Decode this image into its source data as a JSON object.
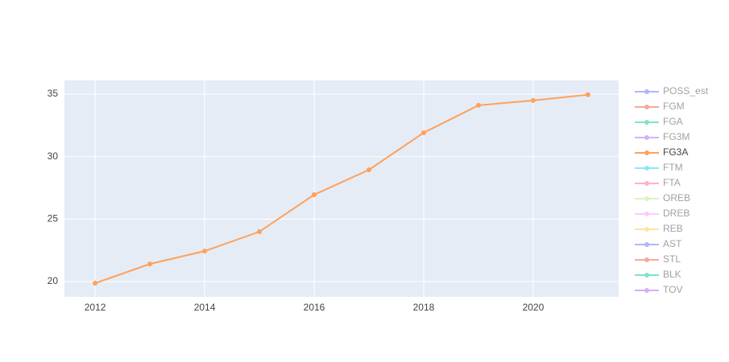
{
  "chart_data": {
    "type": "line",
    "x": [
      2012,
      2013,
      2014,
      2015,
      2016,
      2017,
      2018,
      2019,
      2020,
      2021
    ],
    "xlim": [
      2011.44,
      2021.56
    ],
    "xticks": [
      2012,
      2014,
      2016,
      2018,
      2020
    ],
    "ylim": [
      18.78,
      36.09
    ],
    "yticks": [
      20,
      25,
      30,
      35
    ],
    "grid": true,
    "legend": "right",
    "series": [
      {
        "name": "POSS_est",
        "color": "#636efa",
        "visible": false
      },
      {
        "name": "FGM",
        "color": "#EF553B",
        "visible": false
      },
      {
        "name": "FGA",
        "color": "#00cc96",
        "visible": false
      },
      {
        "name": "FG3M",
        "color": "#ab63fa",
        "visible": false
      },
      {
        "name": "FG3A",
        "color": "#FFA15A",
        "visible": true,
        "values": [
          19.87,
          21.41,
          22.44,
          23.99,
          26.95,
          28.94,
          31.91,
          34.1,
          34.49,
          34.95
        ]
      },
      {
        "name": "FTM",
        "color": "#19d3f3",
        "visible": false
      },
      {
        "name": "FTA",
        "color": "#FF6692",
        "visible": false
      },
      {
        "name": "OREB",
        "color": "#B6E880",
        "visible": false
      },
      {
        "name": "DREB",
        "color": "#FF97FF",
        "visible": false
      },
      {
        "name": "REB",
        "color": "#FECB52",
        "visible": false
      },
      {
        "name": "AST",
        "color": "#636efa",
        "visible": false
      },
      {
        "name": "STL",
        "color": "#EF553B",
        "visible": false
      },
      {
        "name": "BLK",
        "color": "#00cc96",
        "visible": false
      },
      {
        "name": "TOV",
        "color": "#ab63fa",
        "visible": false
      }
    ]
  }
}
